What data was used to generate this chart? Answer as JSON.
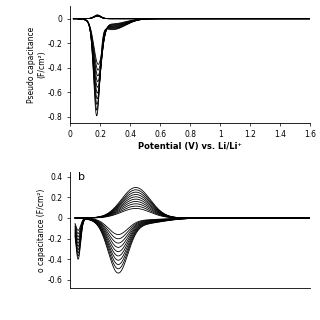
{
  "panel_a": {
    "ylabel": "Pseudo capacitance (F/cm²)",
    "xlabel": "Potential (V) vs. Li/Li⁺",
    "xlim": [
      0,
      1.6
    ],
    "ylim": [
      -0.85,
      0.1
    ],
    "yticks": [
      0,
      -0.2,
      -0.4,
      -0.6,
      -0.8
    ],
    "ytick_labels": [
      "0",
      "-0.2",
      "-0.4",
      "-0.6",
      "-0.8"
    ],
    "xticks": [
      0,
      0.2,
      0.4,
      0.6,
      0.8,
      1.0,
      1.2,
      1.4,
      1.6
    ],
    "xtick_labels": [
      "0",
      "0.2",
      "0.4",
      "0.6",
      "0.8",
      "1",
      "1.2",
      "1.4",
      "1.6"
    ],
    "num_cycles": 10
  },
  "panel_b": {
    "ylabel": "o capacitance (F/cm²)",
    "label": "b",
    "xlim": [
      0.05,
      1.6
    ],
    "ylim": [
      -0.68,
      0.45
    ],
    "yticks": [
      0.4,
      0.2,
      0,
      -0.2,
      -0.4,
      -0.6
    ],
    "ytick_labels": [
      "0.4",
      "0.2",
      "0",
      "-0.2",
      "-0.4",
      "-0.6"
    ],
    "num_cycles": 10
  },
  "bg_color": "#ffffff",
  "line_color": "#000000"
}
